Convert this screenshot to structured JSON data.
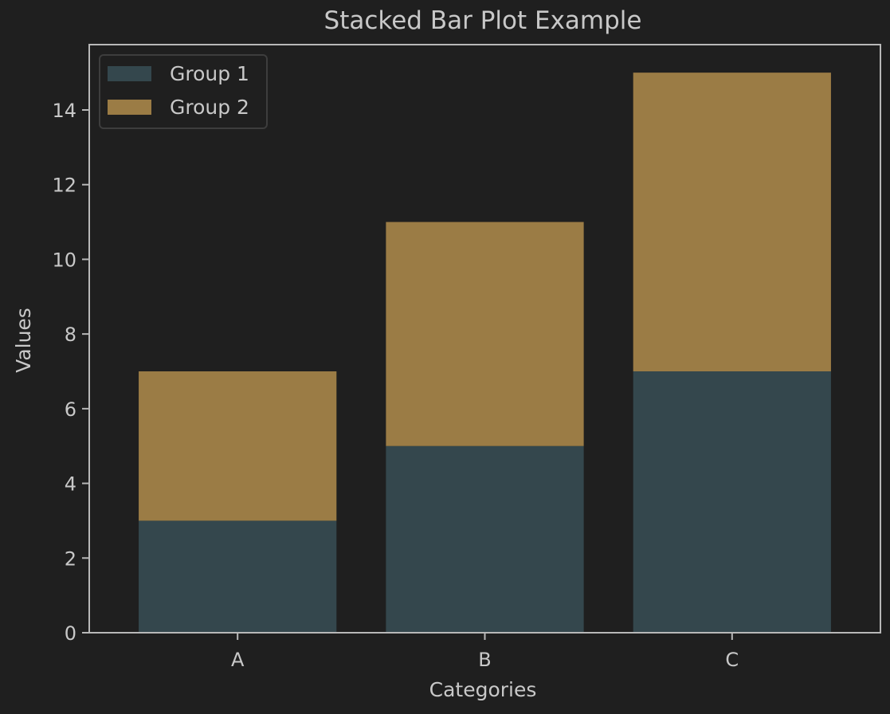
{
  "chart_data": {
    "type": "bar",
    "stacked": true,
    "title": "Stacked Bar Plot Example",
    "xlabel": "Categories",
    "ylabel": "Values",
    "categories": [
      "A",
      "B",
      "C"
    ],
    "series": [
      {
        "name": "Group 1",
        "values": [
          3,
          5,
          7
        ],
        "color": "#34474d"
      },
      {
        "name": "Group 2",
        "values": [
          4,
          6,
          8
        ],
        "color": "#9b7c45"
      }
    ],
    "ylim": [
      0,
      15.75
    ],
    "yticks": [
      "0",
      "2",
      "4",
      "6",
      "8",
      "10",
      "12",
      "14"
    ],
    "grid": false,
    "legend_position": "top-left",
    "colors": {
      "background": "#1f1f1f",
      "axis": "#b8b8b8",
      "text": "#c8c8c8"
    }
  }
}
